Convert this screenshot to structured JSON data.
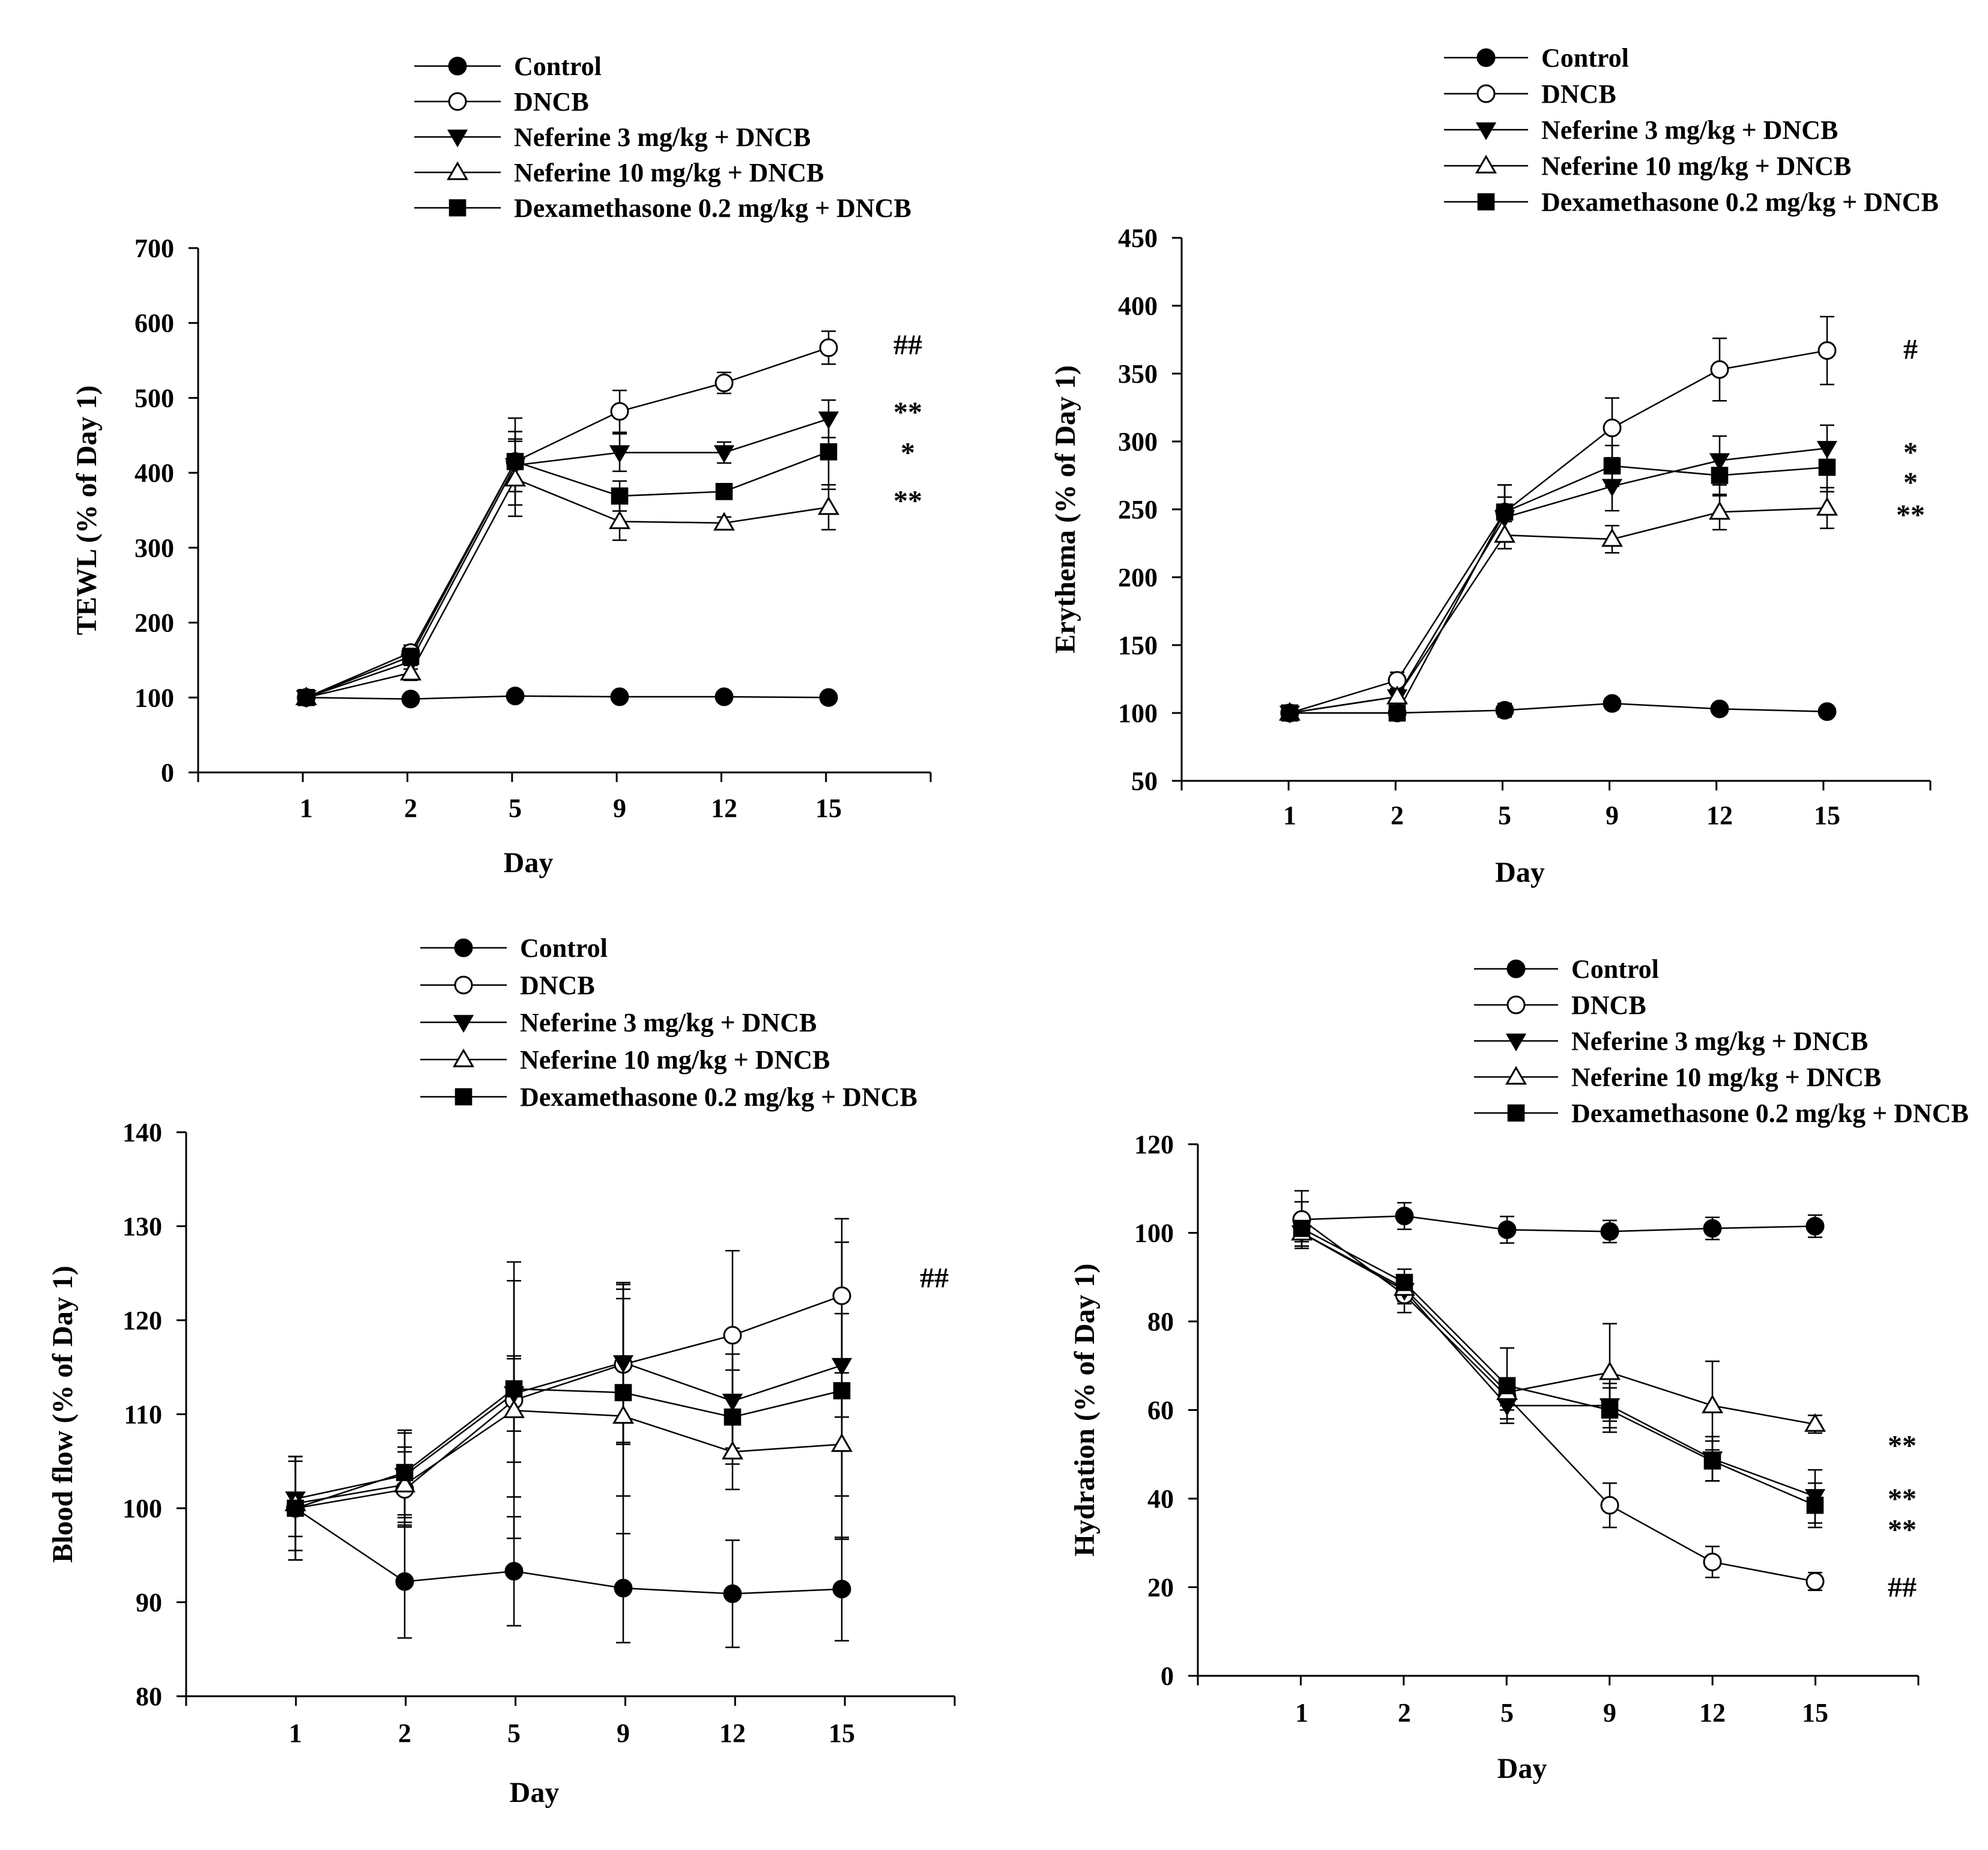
{
  "figure": {
    "legend_entries": [
      "Control",
      "DNCB",
      "Neferine 3 mg/kg + DNCB",
      "Neferine 10 mg/kg + DNCB",
      "Dexamethasone 0.2 mg/kg + DNCB"
    ]
  },
  "chart_data": [
    {
      "type": "line",
      "panel": "top-left",
      "xlabel": "Day",
      "ylabel": "TEWL (% of Day 1)",
      "categories": [
        "1",
        "2",
        "5",
        "9",
        "12",
        "15"
      ],
      "ylim": [
        0,
        700
      ],
      "yticks": [
        0,
        100,
        200,
        300,
        400,
        500,
        600,
        700
      ],
      "legend_placement": "top",
      "series": [
        {
          "name": "Control",
          "values": [
            100,
            98,
            102,
            101,
            101,
            100
          ],
          "errors": [
            4,
            3,
            3,
            3,
            3,
            3
          ]
        },
        {
          "name": "DNCB",
          "values": [
            100,
            160,
            415,
            482,
            520,
            567
          ],
          "errors": [
            4,
            10,
            58,
            28,
            14,
            22
          ]
        },
        {
          "name": "Neferine 3 mg/kg + DNCB",
          "values": [
            100,
            148,
            410,
            427,
            427,
            472
          ],
          "errors": [
            4,
            10,
            35,
            25,
            14,
            25
          ]
        },
        {
          "name": "Neferine 10 mg/kg + DNCB",
          "values": [
            100,
            133,
            392,
            335,
            333,
            354
          ],
          "errors": [
            4,
            10,
            50,
            25,
            8,
            30
          ]
        },
        {
          "name": "Dexamethasone 0.2 mg/kg + DNCB",
          "values": [
            100,
            155,
            415,
            369,
            375,
            428
          ],
          "errors": [
            4,
            12,
            40,
            20,
            10,
            50
          ]
        }
      ],
      "annotations": [
        "##",
        "**",
        "*",
        "**"
      ],
      "annotation_values": [
        571,
        481,
        427,
        363
      ]
    },
    {
      "type": "line",
      "panel": "top-right",
      "xlabel": "Day",
      "ylabel": "Erythema (% of Day 1)",
      "categories": [
        "1",
        "2",
        "5",
        "9",
        "12",
        "15"
      ],
      "ylim": [
        50,
        450
      ],
      "yticks": [
        50,
        100,
        150,
        200,
        250,
        300,
        350,
        400,
        450
      ],
      "legend_placement": "top",
      "series": [
        {
          "name": "Control",
          "values": [
            100,
            100,
            102,
            107,
            103,
            101
          ],
          "errors": [
            3,
            3,
            5,
            4,
            3,
            3
          ]
        },
        {
          "name": "DNCB",
          "values": [
            100,
            124,
            248,
            310,
            353,
            367
          ],
          "errors": [
            3,
            6,
            20,
            22,
            23,
            25
          ]
        },
        {
          "name": "Neferine 3 mg/kg + DNCB",
          "values": [
            100,
            112,
            244,
            267,
            286,
            295
          ],
          "errors": [
            3,
            5,
            15,
            18,
            18,
            17
          ]
        },
        {
          "name": "Neferine 10 mg/kg + DNCB",
          "values": [
            100,
            112,
            231,
            228,
            248,
            251
          ],
          "errors": [
            3,
            5,
            10,
            10,
            13,
            15
          ]
        },
        {
          "name": "Dexamethasone 0.2 mg/kg + DNCB",
          "values": [
            100,
            100,
            248,
            282,
            275,
            281
          ],
          "errors": [
            3,
            3,
            20,
            15,
            15,
            18
          ]
        }
      ],
      "annotations": [
        "#",
        "*",
        "*",
        "**"
      ],
      "annotation_values": [
        368,
        292,
        270,
        246
      ]
    },
    {
      "type": "line",
      "panel": "bottom-left",
      "xlabel": "Day",
      "ylabel": "Blood flow (% of Day 1)",
      "categories": [
        "1",
        "2",
        "5",
        "9",
        "12",
        "15"
      ],
      "ylim": [
        80,
        140
      ],
      "yticks": [
        80,
        90,
        100,
        110,
        120,
        130,
        140
      ],
      "legend_placement": "top",
      "series": [
        {
          "name": "Control",
          "values": [
            100,
            92.2,
            93.3,
            91.5,
            90.9,
            91.4
          ],
          "errors": [
            5.5,
            6,
            5.8,
            5.8,
            5.7,
            5.5
          ]
        },
        {
          "name": "DNCB",
          "values": [
            100,
            102,
            111.5,
            115.3,
            118.4,
            122.6
          ],
          "errors": [
            5.5,
            4,
            14.7,
            8.5,
            9,
            8.2
          ]
        },
        {
          "name": "Neferine 3 mg/kg + DNCB",
          "values": [
            101,
            103.5,
            112.2,
            115.5,
            111.4,
            115.2
          ],
          "errors": [
            4,
            4.5,
            4,
            8.5,
            5,
            5.5
          ]
        },
        {
          "name": "Neferine 10 mg/kg + DNCB",
          "values": [
            100.5,
            102.5,
            110.4,
            109.8,
            106,
            106.8
          ],
          "errors": [
            5,
            4,
            5.5,
            12.5,
            4,
            5.5
          ]
        },
        {
          "name": "Dexamethasone 0.2 mg/kg + DNCB",
          "values": [
            100,
            103.8,
            112.7,
            112.3,
            109.7,
            112.5
          ],
          "errors": [
            5.5,
            4.5,
            11.5,
            11,
            5,
            15.8
          ]
        }
      ],
      "annotations": [
        "##"
      ],
      "annotation_values": [
        124.5
      ]
    },
    {
      "type": "line",
      "panel": "bottom-right",
      "xlabel": "Day",
      "ylabel": "Hydration (% of Day 1)",
      "categories": [
        "1",
        "2",
        "5",
        "9",
        "12",
        "15"
      ],
      "ylim": [
        0,
        120
      ],
      "yticks": [
        0,
        20,
        40,
        60,
        80,
        100,
        120
      ],
      "legend_placement": "top",
      "series": [
        {
          "name": "Control",
          "values": [
            103,
            103.8,
            100.7,
            100.3,
            101,
            101.5
          ],
          "errors": [
            6.5,
            3,
            3,
            2.5,
            2.5,
            2.5
          ]
        },
        {
          "name": "DNCB",
          "values": [
            103,
            86,
            63,
            38.5,
            25.7,
            21.3
          ],
          "errors": [
            4,
            4,
            3,
            5,
            3.5,
            2
          ]
        },
        {
          "name": "Neferine 3 mg/kg + DNCB",
          "values": [
            100,
            87,
            61,
            61,
            49,
            40.5
          ],
          "errors": [
            3,
            3,
            3,
            5,
            5,
            6
          ]
        },
        {
          "name": "Neferine 10 mg/kg + DNCB",
          "values": [
            100,
            87.5,
            64,
            68.5,
            61,
            56.8
          ],
          "errors": [
            3,
            3,
            3,
            11,
            10,
            2
          ]
        },
        {
          "name": "Dexamethasone 0.2 mg/kg + DNCB",
          "values": [
            101,
            88.8,
            65.5,
            60,
            48.5,
            38.5
          ],
          "errors": [
            3,
            3,
            8.5,
            5,
            4.5,
            5
          ]
        }
      ],
      "annotations": [
        "**",
        "**",
        "**",
        "##"
      ],
      "annotation_values": [
        52,
        40,
        33,
        20
      ]
    }
  ]
}
